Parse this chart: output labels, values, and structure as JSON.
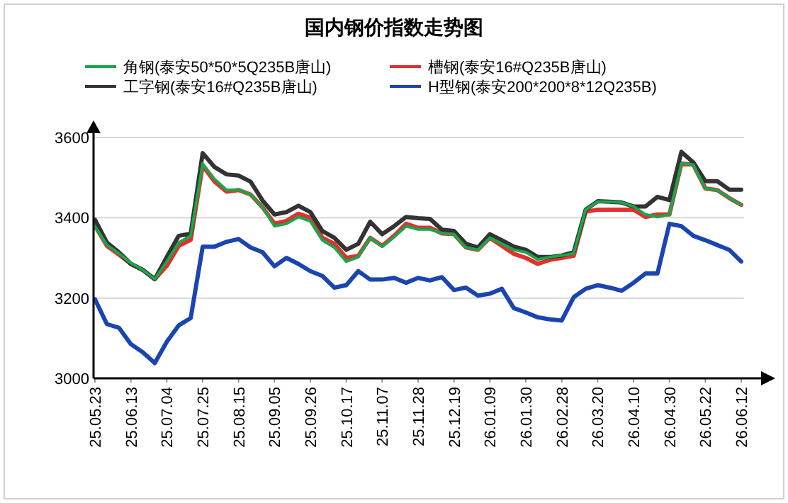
{
  "chart_data": {
    "type": "line",
    "title": "国内钢价指数走势图",
    "categories": [
      "25.05.23",
      null,
      null,
      "25.06.13",
      null,
      null,
      "25.07.04",
      null,
      null,
      "25.07.25",
      null,
      null,
      "25.08.15",
      null,
      null,
      "25.09.05",
      null,
      null,
      "25.09.26",
      null,
      null,
      "25.10.17",
      null,
      null,
      "25.11.07",
      null,
      null,
      "25.11.28",
      null,
      null,
      "25.12.19",
      null,
      null,
      "26.01.09",
      null,
      null,
      "26.01.30",
      null,
      null,
      "26.02.28",
      null,
      null,
      "26.03.20",
      null,
      null,
      "26.04.10",
      null,
      null,
      "26.04.30",
      null,
      null,
      "26.05.22",
      null,
      null,
      "26.06.12"
    ],
    "series": [
      {
        "name": "角钢(泰安50*50*5Q235B唐山)",
        "color": "#1aa64a",
        "values": [
          3379,
          3332,
          3311,
          3287,
          3270,
          3247,
          3291,
          3338,
          3355,
          3535,
          3496,
          3469,
          3469,
          3458,
          3426,
          3379,
          3385,
          3402,
          3391,
          3344,
          3326,
          3291,
          3302,
          3350,
          3328,
          3352,
          3379,
          3371,
          3371,
          3361,
          3359,
          3326,
          3320,
          3350,
          3335,
          3320,
          3314,
          3296,
          3302,
          3306,
          3311,
          3420,
          3440,
          3440,
          3438,
          3428,
          3408,
          3402,
          3408,
          3535,
          3532,
          3473,
          3469,
          3449,
          3432
        ]
      },
      {
        "name": "槽钢(泰安16#Q235B唐山)",
        "color": "#e03030",
        "values": [
          3380,
          3330,
          3308,
          3285,
          3270,
          3247,
          3280,
          3330,
          3345,
          3530,
          3490,
          3465,
          3469,
          3458,
          3426,
          3385,
          3392,
          3410,
          3400,
          3350,
          3335,
          3300,
          3305,
          3350,
          3330,
          3355,
          3385,
          3375,
          3375,
          3361,
          3359,
          3326,
          3320,
          3350,
          3330,
          3310,
          3300,
          3285,
          3295,
          3300,
          3305,
          3415,
          3420,
          3420,
          3420,
          3420,
          3402,
          3408,
          3408,
          3535,
          3532,
          3473,
          3469,
          3449,
          3432
        ]
      },
      {
        "name": "工字钢(泰安16#Q235B唐山)",
        "color": "#333333",
        "values": [
          3395,
          3338,
          3314,
          3285,
          3270,
          3247,
          3302,
          3355,
          3360,
          3561,
          3526,
          3508,
          3505,
          3490,
          3443,
          3408,
          3414,
          3430,
          3414,
          3367,
          3350,
          3320,
          3335,
          3390,
          3359,
          3379,
          3402,
          3399,
          3397,
          3370,
          3367,
          3335,
          3326,
          3359,
          3344,
          3328,
          3320,
          3302,
          3302,
          3306,
          3314,
          3420,
          3441,
          3440,
          3438,
          3428,
          3428,
          3452,
          3444,
          3564,
          3538,
          3491,
          3491,
          3470,
          3470
        ]
      },
      {
        "name": "H型钢(泰安200*200*8*12Q235B)",
        "color": "#1a45b0",
        "values": [
          3197,
          3135,
          3126,
          3085,
          3065,
          3038,
          3091,
          3132,
          3150,
          3328,
          3328,
          3340,
          3347,
          3326,
          3314,
          3279,
          3300,
          3285,
          3267,
          3255,
          3226,
          3232,
          3267,
          3246,
          3246,
          3250,
          3238,
          3250,
          3244,
          3252,
          3220,
          3226,
          3206,
          3211,
          3223,
          3175,
          3164,
          3152,
          3147,
          3144,
          3202,
          3223,
          3232,
          3226,
          3218,
          3238,
          3261,
          3261,
          3385,
          3379,
          3355,
          3344,
          3332,
          3320,
          3291
        ]
      }
    ],
    "ylim": [
      3000,
      3600
    ],
    "yticks": [
      3000,
      3200,
      3400,
      3600
    ],
    "grid": "y",
    "legend": "top"
  }
}
